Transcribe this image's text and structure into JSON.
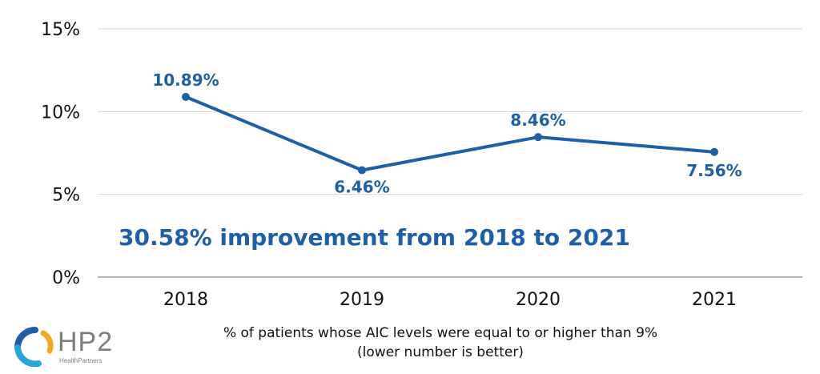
{
  "chart_data": {
    "type": "line",
    "categories": [
      "2018",
      "2019",
      "2020",
      "2021"
    ],
    "values": [
      10.89,
      6.46,
      8.46,
      7.56
    ],
    "data_labels": [
      "10.89%",
      "6.46%",
      "8.46%",
      "7.56%"
    ],
    "ylim": [
      0,
      15
    ],
    "yticks": [
      0,
      5,
      10,
      15
    ],
    "ytick_labels": [
      "0%",
      "5%",
      "10%",
      "15%"
    ],
    "grid": true,
    "legend": "none",
    "line_color": "#1f5fa6",
    "label_color": "#1f5fa6",
    "annotation": "30.58% improvement from 2018 to 2021"
  },
  "footer": {
    "caption_line1": "% of patients whose AIC levels were equal to or higher than 9%",
    "caption_line2": "(lower number is better)",
    "logo_text": "HP2",
    "logo_subtext": "HealthPartners",
    "logo_icon": "hp2-logo-icon",
    "logo_colors": [
      "#1f5fa6",
      "#f5a623",
      "#29a3d9"
    ]
  }
}
